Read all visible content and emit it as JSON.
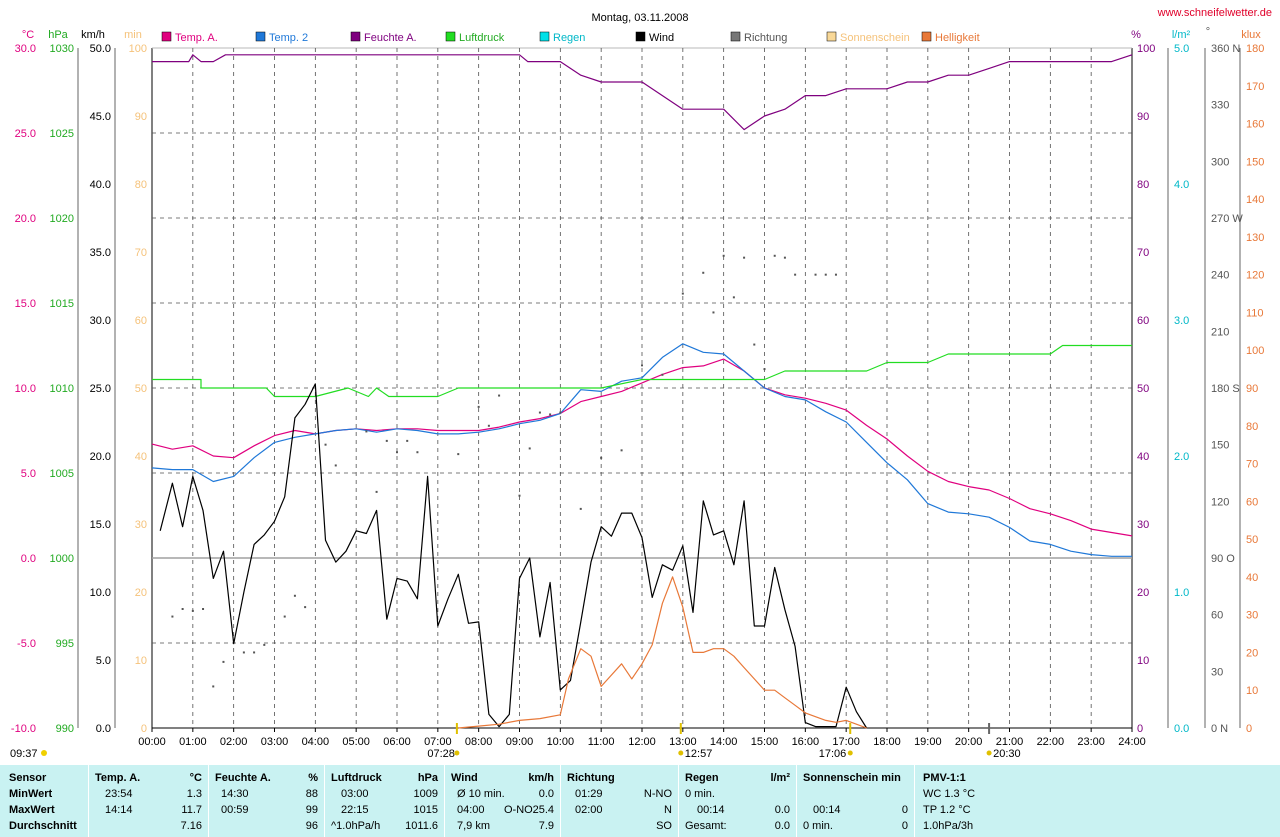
{
  "title": "Montag, 03.11.2008",
  "site": "www.schneifelwetter.de",
  "colors": {
    "temp_a": "#e0007f",
    "temp_2": "#1f78d8",
    "feuchte": "#7f007f",
    "luftdruck": "#22cc22",
    "regen": "#00b8c8",
    "wind": "#000000",
    "richtung": "#555555",
    "sonne": "#f5c27a",
    "helligkeit": "#e87838",
    "grid": "#505050",
    "baseline": "#a0a0a0",
    "panel": "#c9f2f2"
  },
  "axes": {
    "temp": {
      "unit": "°C",
      "ticks": [
        "30.0",
        "25.0",
        "20.0",
        "15.0",
        "10.0",
        "5.0",
        "0.0",
        "-5.0",
        "-10.0"
      ],
      "color": "#e0007f"
    },
    "hpa": {
      "unit": "hPa",
      "ticks": [
        "1030",
        "1025",
        "1020",
        "1015",
        "1010",
        "1005",
        "1000",
        "995",
        "990"
      ],
      "color": "#22aa22"
    },
    "kmh": {
      "unit": "km/h",
      "ticks": [
        "50.0",
        "45.0",
        "40.0",
        "35.0",
        "30.0",
        "25.0",
        "20.0",
        "15.0",
        "10.0",
        "5.0",
        "0.0"
      ],
      "color": "#000000"
    },
    "min": {
      "unit": "min",
      "ticks": [
        "100",
        "90",
        "80",
        "70",
        "60",
        "50",
        "40",
        "30",
        "20",
        "10",
        "0"
      ],
      "color": "#f5c27a"
    },
    "pct": {
      "unit": "%",
      "ticks": [
        "100",
        "90",
        "80",
        "70",
        "60",
        "50",
        "40",
        "30",
        "20",
        "10",
        "0"
      ],
      "color": "#7f007f"
    },
    "lm2": {
      "unit": "l/m²",
      "ticks": [
        "5.0",
        "4.0",
        "3.0",
        "2.0",
        "1.0",
        "0.0"
      ],
      "color": "#00b8c8"
    },
    "deg": {
      "unit": "°",
      "ticks": [
        "360 N",
        "330",
        "300",
        "270 W",
        "240",
        "210",
        "180 S",
        "150",
        "120",
        "90  O",
        "60",
        "30",
        "0    N"
      ],
      "color": "#555555"
    },
    "klux": {
      "unit": "klux",
      "ticks": [
        "180",
        "170",
        "160",
        "150",
        "140",
        "130",
        "120",
        "110",
        "100",
        "90",
        "80",
        "70",
        "60",
        "50",
        "40",
        "30",
        "20",
        "10",
        "0"
      ],
      "color": "#e87838"
    },
    "time": {
      "ticks": [
        "00:00",
        "01:00",
        "02:00",
        "03:00",
        "04:00",
        "05:00",
        "06:00",
        "07:00",
        "08:00",
        "09:00",
        "10:00",
        "11:00",
        "12:00",
        "13:00",
        "14:00",
        "15:00",
        "16:00",
        "17:00",
        "18:00",
        "19:00",
        "20:00",
        "21:00",
        "22:00",
        "23:00",
        "24:00"
      ]
    }
  },
  "markers": {
    "update_time": "09:37",
    "sunrise": "07:28",
    "noon": "12:57",
    "sunset": "17:06",
    "moon": "20:30"
  },
  "legend": [
    {
      "label": "Temp. A.",
      "color": "#e0007f",
      "text_color": "#e0007f"
    },
    {
      "label": "Temp. 2",
      "color": "#1f78d8",
      "text_color": "#1f78d8"
    },
    {
      "label": "Feuchte A.",
      "color": "#7f007f",
      "text_color": "#7f007f"
    },
    {
      "label": "Luftdruck",
      "color": "#22dd22",
      "text_color": "#22aa22"
    },
    {
      "label": "Regen",
      "color": "#00e0e8",
      "text_color": "#00b8c8"
    },
    {
      "label": "Wind",
      "color": "#000000",
      "text_color": "#000000"
    },
    {
      "label": "Richtung",
      "color": "#777777",
      "text_color": "#555555"
    },
    {
      "label": "Sonnenschein",
      "color": "#f8d898",
      "text_color": "#f5c27a"
    },
    {
      "label": "Helligkeit",
      "color": "#e87838",
      "text_color": "#e87838"
    }
  ],
  "chart_data": {
    "type": "line",
    "title": "Montag, 03.11.2008",
    "x_unit": "hours",
    "xlim": [
      0,
      24
    ],
    "grid": true,
    "legend_position": "top",
    "series": [
      {
        "name": "Temp. A.",
        "axis": "temp",
        "unit": "°C",
        "color": "#e0007f",
        "x": [
          0,
          0.5,
          1,
          1.5,
          2,
          2.5,
          3,
          3.5,
          4,
          4.5,
          5,
          5.5,
          6,
          6.5,
          7,
          7.5,
          8,
          8.5,
          9,
          9.5,
          10,
          10.5,
          11,
          11.5,
          12,
          12.5,
          13,
          13.5,
          14,
          14.5,
          15,
          15.5,
          16,
          16.5,
          17,
          17.5,
          18,
          18.5,
          19,
          19.5,
          20,
          20.5,
          21,
          21.5,
          22,
          22.5,
          23,
          23.5,
          24
        ],
        "y": [
          6.7,
          6.4,
          6.6,
          6.0,
          5.9,
          6.6,
          7.2,
          7.5,
          7.3,
          7.5,
          7.6,
          7.5,
          7.6,
          7.6,
          7.5,
          7.5,
          7.5,
          7.7,
          8.0,
          8.2,
          8.5,
          9.2,
          9.5,
          9.8,
          10.3,
          10.8,
          11.2,
          11.3,
          11.7,
          11.0,
          10.0,
          9.6,
          9.4,
          9.1,
          8.7,
          7.8,
          7.0,
          6.0,
          5.1,
          4.5,
          4.2,
          4.0,
          3.5,
          2.9,
          2.6,
          2.2,
          1.7,
          1.5,
          1.3
        ]
      },
      {
        "name": "Temp. 2",
        "axis": "temp",
        "unit": "°C",
        "color": "#1f78d8",
        "x": [
          0,
          0.5,
          1,
          1.5,
          2,
          2.5,
          3,
          3.5,
          4,
          4.5,
          5,
          5.5,
          6,
          6.5,
          7,
          7.5,
          8,
          8.5,
          9,
          9.5,
          10,
          10.5,
          11,
          11.5,
          12,
          12.5,
          13,
          13.5,
          14,
          14.5,
          15,
          15.5,
          16,
          16.5,
          17,
          17.5,
          18,
          18.5,
          19,
          19.5,
          20,
          20.5,
          21,
          21.5,
          22,
          22.5,
          23,
          23.5,
          24
        ],
        "y": [
          5.3,
          5.2,
          5.2,
          4.5,
          4.8,
          5.9,
          6.8,
          7.1,
          7.3,
          7.5,
          7.6,
          7.4,
          7.6,
          7.5,
          7.3,
          7.3,
          7.4,
          7.6,
          7.9,
          8.1,
          8.5,
          9.9,
          9.8,
          10.4,
          10.6,
          11.8,
          12.6,
          12.1,
          12.0,
          11.0,
          10.0,
          9.5,
          9.3,
          8.6,
          8.0,
          6.8,
          5.6,
          4.6,
          3.2,
          2.7,
          2.6,
          2.4,
          1.8,
          1.0,
          0.8,
          0.4,
          0.2,
          0.1,
          0.1
        ]
      },
      {
        "name": "Feuchte A.",
        "axis": "pct",
        "unit": "%",
        "color": "#7f007f",
        "x": [
          0,
          0.5,
          0.9,
          1.0,
          1.2,
          1.5,
          1.8,
          2,
          2.5,
          3,
          3.5,
          4,
          4.5,
          5,
          5.5,
          6,
          6.5,
          7,
          7.5,
          8,
          8.5,
          9,
          9.2,
          9.5,
          10,
          10.5,
          11,
          11.5,
          12,
          12.5,
          13,
          13.5,
          14,
          14.5,
          15,
          15.5,
          16,
          16.5,
          17,
          17.5,
          18,
          18.5,
          19,
          19.5,
          20,
          20.5,
          21,
          21.5,
          22,
          22.5,
          23,
          23.5,
          24
        ],
        "y": [
          98,
          98,
          98,
          99,
          98,
          98,
          99,
          99,
          99,
          99,
          99,
          99,
          99,
          99,
          99,
          99,
          99,
          99,
          99,
          99,
          99,
          99,
          98,
          98,
          98,
          96,
          95,
          95,
          95,
          93,
          91,
          91,
          91,
          88,
          90,
          91,
          93,
          93,
          94,
          94,
          94,
          95,
          95,
          96,
          96,
          97,
          98,
          98,
          98,
          98,
          98,
          98,
          99
        ]
      },
      {
        "name": "Luftdruck",
        "axis": "hpa",
        "unit": "hPa",
        "color": "#22dd22",
        "x": [
          0,
          1.2,
          1.2,
          2.8,
          3.0,
          4.0,
          4.8,
          5.3,
          5.5,
          5.8,
          6.0,
          7.0,
          7.5,
          8.0,
          11.0,
          12.0,
          13.0,
          14.0,
          15.0,
          15.5,
          16.0,
          17.5,
          18.0,
          19.0,
          19.5,
          21.0,
          21.5,
          22.0,
          22.3,
          23.0,
          24.0
        ],
        "y": [
          1010.5,
          1010.5,
          1010,
          1010,
          1009.5,
          1009.5,
          1010,
          1009.5,
          1010,
          1009.5,
          1009.5,
          1009.5,
          1010,
          1010,
          1010,
          1010.5,
          1010.5,
          1010.5,
          1010.5,
          1011,
          1011,
          1011,
          1011.5,
          1011.5,
          1012,
          1012,
          1012,
          1012,
          1012.5,
          1012.5,
          1012.5
        ]
      },
      {
        "name": "Wind",
        "axis": "kmh",
        "unit": "km/h",
        "color": "#000000",
        "x": [
          0.2,
          0.5,
          0.75,
          1.0,
          1.25,
          1.5,
          1.75,
          2.0,
          2.25,
          2.5,
          2.75,
          3.0,
          3.25,
          3.5,
          3.75,
          4.0,
          4.25,
          4.5,
          4.75,
          5.0,
          5.25,
          5.5,
          5.75,
          6.0,
          6.25,
          6.5,
          6.75,
          7.0,
          7.25,
          7.5,
          7.75,
          8.0,
          8.25,
          8.5,
          8.75,
          9.0,
          9.25,
          9.5,
          9.75,
          10.0,
          10.25,
          10.5,
          10.75,
          11.0,
          11.25,
          11.5,
          11.75,
          12.0,
          12.25,
          12.5,
          12.75,
          13.0,
          13.25,
          13.5,
          13.75,
          14.0,
          14.25,
          14.5,
          14.75,
          15.0,
          15.25,
          15.5,
          15.75,
          16.0,
          16.25,
          16.5,
          16.75,
          17.0,
          17.25,
          17.5
        ],
        "y": [
          14.5,
          18.0,
          14.8,
          18.5,
          16.0,
          11.0,
          13.0,
          6.2,
          10.0,
          13.5,
          14.2,
          15.2,
          17.0,
          22.8,
          23.8,
          25.3,
          13.8,
          12.2,
          13.0,
          14.5,
          14.3,
          16.0,
          8.0,
          11.0,
          10.8,
          9.5,
          18.5,
          7.5,
          9.5,
          11.3,
          7.7,
          7.8,
          1.0,
          0.1,
          1.0,
          11.0,
          12.5,
          6.7,
          10.7,
          2.8,
          3.5,
          7.8,
          12.2,
          14.8,
          14.1,
          15.8,
          15.8,
          14.0,
          9.6,
          12.0,
          11.6,
          13.4,
          8.5,
          16.7,
          14.2,
          14.5,
          12.0,
          16.7,
          7.5,
          7.5,
          11.8,
          8.7,
          6.0,
          0.4,
          0.1,
          0.1,
          0.1,
          3.0,
          1.2,
          0.0
        ]
      },
      {
        "name": "Helligkeit",
        "axis": "klux",
        "unit": "klux",
        "color": "#e87838",
        "x": [
          7.5,
          8.0,
          8.5,
          9.0,
          9.5,
          10.0,
          10.2,
          10.5,
          10.75,
          11.0,
          11.5,
          11.75,
          12.0,
          12.25,
          12.5,
          12.75,
          13.0,
          13.25,
          13.5,
          13.75,
          14.0,
          14.25,
          14.5,
          14.75,
          15.0,
          15.25,
          15.5,
          15.75,
          16.0,
          16.25,
          16.5,
          16.75,
          17.0,
          17.25,
          17.5
        ],
        "y": [
          0,
          0.5,
          1,
          2,
          2.5,
          3.5,
          13,
          21,
          19,
          11,
          17,
          13,
          17,
          22,
          33,
          40,
          32,
          20,
          20,
          21,
          21,
          19,
          16,
          13,
          10,
          10,
          8,
          6,
          4,
          3,
          2,
          1.5,
          2,
          1,
          0
        ]
      },
      {
        "name": "Richtung",
        "axis": "deg",
        "unit": "°",
        "color": "#555555",
        "x": [
          0.5,
          0.75,
          1.0,
          1.25,
          1.5,
          1.75,
          2.25,
          2.5,
          2.75,
          3.25,
          3.5,
          3.75,
          4.25,
          4.5,
          5.25,
          5.5,
          5.75,
          6.0,
          6.25,
          6.5,
          7.5,
          8.0,
          8.25,
          8.5,
          9.0,
          9.25,
          9.5,
          9.75,
          10.0,
          10.5,
          11.0,
          11.5,
          12.0,
          12.5,
          13.0,
          13.5,
          13.75,
          14.0,
          14.25,
          14.5,
          14.75,
          15.0,
          15.25,
          15.5,
          15.75,
          16.25,
          16.5,
          16.75
        ],
        "y": [
          59,
          63,
          62,
          63,
          22,
          35,
          40,
          40,
          44,
          59,
          70,
          64,
          150,
          139,
          157,
          125,
          152,
          146,
          152,
          146,
          145,
          170,
          160,
          176,
          123,
          148,
          167,
          166,
          167,
          116,
          143,
          147,
          192,
          187,
          230,
          241,
          220,
          250,
          228,
          249,
          203,
          190,
          250,
          249,
          240,
          240,
          240,
          240
        ]
      }
    ],
    "stats": {
      "headers": [
        "Sensor",
        "Temp. A.",
        "°C",
        "Feuchte A.",
        "%",
        "Luftdruck",
        "hPa",
        "Wind",
        "km/h",
        "Richtung",
        "Regen",
        "l/m²",
        "Sonnenschein min",
        "PMV-1:1"
      ],
      "rows": {
        "min": {
          "label": "MinWert",
          "temp_t": "23:54",
          "temp_v": "1.3",
          "hum_t": "14:30",
          "hum_v": "88",
          "press_t": "03:00",
          "press_v": "1009",
          "wind_l": "Ø 10 min.",
          "wind_v": "0.0",
          "dir_t": "01:29",
          "dir_v": "N-NO",
          "rain_l": "0 min.",
          "rain_v": "",
          "sun_l": "",
          "sun_v": "",
          "pmv": "WC 1.3 °C"
        },
        "max": {
          "label": "MaxWert",
          "temp_t": "14:14",
          "temp_v": "11.7",
          "hum_t": "00:59",
          "hum_v": "99",
          "press_t": "22:15",
          "press_v": "1015",
          "wind_l": "04:00",
          "wind_m": "O-NO",
          "wind_v": "25.4",
          "dir_t": "02:00",
          "dir_v": "N",
          "rain_l": "00:14",
          "rain_v": "0.0",
          "sun_l": "00:14",
          "sun_v": "0",
          "pmv": "TP 1.2 °C"
        },
        "avg": {
          "label": "Durchschnitt",
          "temp_t": "",
          "temp_v": "7.16",
          "hum_t": "",
          "hum_v": "96",
          "press_t": "^1.0hPa/h",
          "press_v": "1011.6",
          "wind_l": "7,9 km",
          "wind_v": "7.9",
          "dir_t": "",
          "dir_v": "SO",
          "rain_l": "Gesamt:",
          "rain_v": "0.0",
          "sun_l": "0 min.",
          "sun_v": "0",
          "pmv": "1.0hPa/3h"
        }
      }
    }
  }
}
